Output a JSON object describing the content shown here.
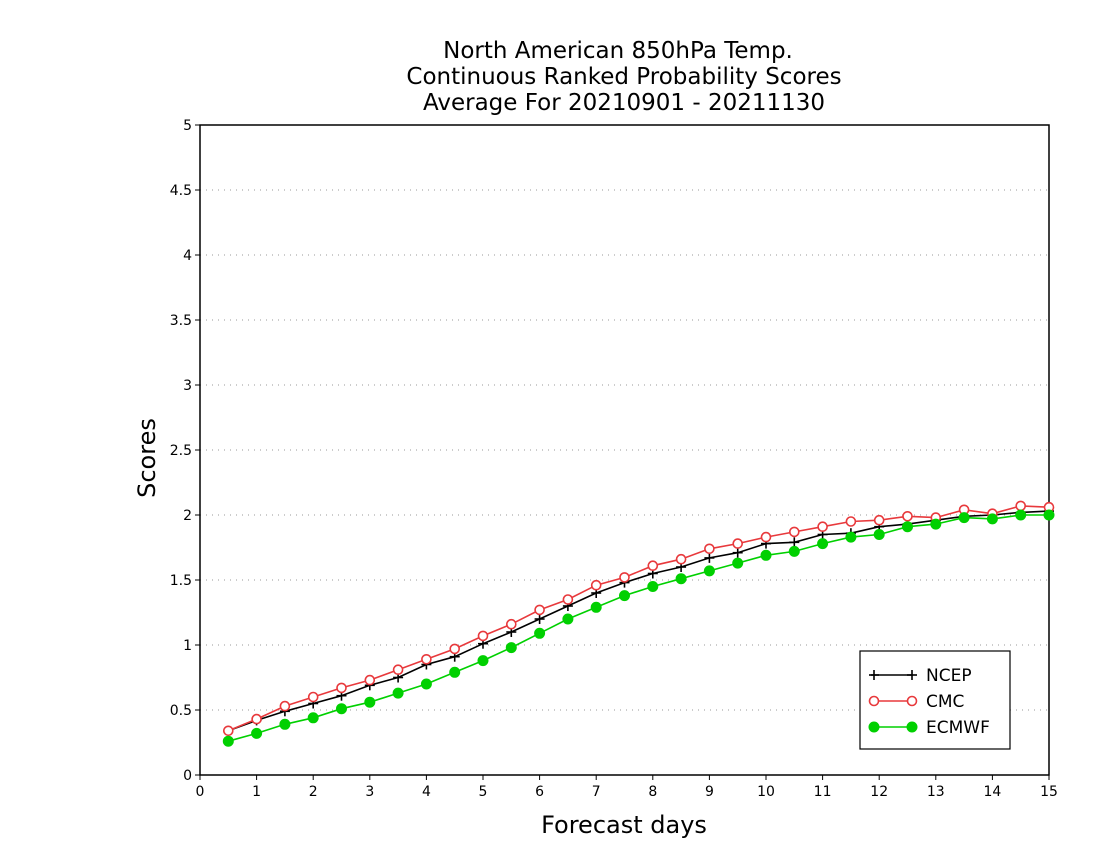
{
  "chart_data": {
    "type": "line",
    "title_lines": [
      "North American 850hPa Temp.",
      "Continuous Ranked Probability Scores",
      "Average For 20210901 - 20211130"
    ],
    "xlabel": "Forecast days",
    "ylabel": "Scores",
    "xlim": [
      0,
      15
    ],
    "ylim": [
      0,
      5
    ],
    "x_ticks": [
      "0",
      "1",
      "2",
      "3",
      "4",
      "5",
      "6",
      "7",
      "8",
      "9",
      "10",
      "11",
      "12",
      "13",
      "14",
      "15"
    ],
    "y_ticks": [
      "0",
      "0.5",
      "1",
      "1.5",
      "2",
      "2.5",
      "3",
      "3.5",
      "4",
      "4.5",
      "5"
    ],
    "grid": true,
    "legend_position": "bottom-right",
    "x": [
      0.5,
      1,
      1.5,
      2,
      2.5,
      3,
      3.5,
      4,
      4.5,
      5,
      5.5,
      6,
      6.5,
      7,
      7.5,
      8,
      8.5,
      9,
      9.5,
      10,
      10.5,
      11,
      11.5,
      12,
      12.5,
      13,
      13.5,
      14,
      14.5,
      15
    ],
    "series": [
      {
        "name": "NCEP",
        "color": "#000000",
        "marker": "plus",
        "values": [
          0.34,
          0.42,
          0.49,
          0.55,
          0.61,
          0.69,
          0.75,
          0.85,
          0.91,
          1.01,
          1.1,
          1.2,
          1.3,
          1.4,
          1.48,
          1.55,
          1.6,
          1.67,
          1.71,
          1.78,
          1.79,
          1.85,
          1.86,
          1.91,
          1.93,
          1.96,
          1.99,
          2.0,
          2.02,
          2.03
        ]
      },
      {
        "name": "CMC",
        "color": "#e8393c",
        "marker": "open-circle",
        "values": [
          0.34,
          0.43,
          0.53,
          0.6,
          0.67,
          0.73,
          0.81,
          0.89,
          0.97,
          1.07,
          1.16,
          1.27,
          1.35,
          1.46,
          1.52,
          1.61,
          1.66,
          1.74,
          1.78,
          1.83,
          1.87,
          1.91,
          1.95,
          1.96,
          1.99,
          1.98,
          2.04,
          2.01,
          2.07,
          2.06
        ]
      },
      {
        "name": "ECMWF",
        "color": "#00d000",
        "marker": "filled-circle",
        "values": [
          0.26,
          0.32,
          0.39,
          0.44,
          0.51,
          0.56,
          0.63,
          0.7,
          0.79,
          0.88,
          0.98,
          1.09,
          1.2,
          1.29,
          1.38,
          1.45,
          1.51,
          1.57,
          1.63,
          1.69,
          1.72,
          1.78,
          1.83,
          1.85,
          1.91,
          1.93,
          1.98,
          1.97,
          2.0,
          2.0
        ]
      }
    ]
  }
}
